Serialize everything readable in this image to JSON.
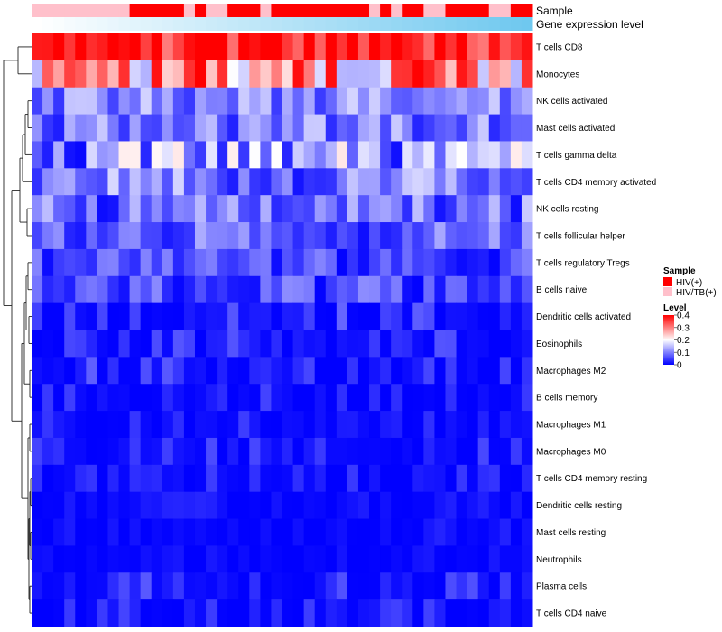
{
  "chart_data": {
    "type": "heatmap",
    "rows": [
      "T cells CD8",
      "Monocytes",
      "NK cells activated",
      "Mast cells activated",
      "T cells gamma delta",
      "T cells CD4 memory activated",
      "NK cells resting",
      "T cells follicular helper",
      "T cells regulatory  Tregs",
      "B cells naive",
      "Dendritic cells activated",
      "Eosinophils",
      "Macrophages M2",
      "B cells memory",
      "Macrophages M1",
      "Macrophages M0",
      "T cells CD4 memory resting",
      "Dendritic cells resting",
      "Mast cells resting",
      "Neutrophils",
      "Plasma cells",
      "T cells CD4 naive"
    ],
    "n_samples": 46,
    "annotation_tracks": [
      {
        "name": "Sample"
      },
      {
        "name": "Gene expression level"
      }
    ],
    "sample_groups": [
      "HIV/TB(+)",
      "HIV/TB(+)",
      "HIV/TB(+)",
      "HIV/TB(+)",
      "HIV/TB(+)",
      "HIV/TB(+)",
      "HIV/TB(+)",
      "HIV/TB(+)",
      "HIV/TB(+)",
      "HIV(+)",
      "HIV(+)",
      "HIV(+)",
      "HIV(+)",
      "HIV(+)",
      "HIV/TB(+)",
      "HIV(+)",
      "HIV/TB(+)",
      "HIV/TB(+)",
      "HIV(+)",
      "HIV(+)",
      "HIV(+)",
      "HIV/TB(+)",
      "HIV(+)",
      "HIV(+)",
      "HIV(+)",
      "HIV(+)",
      "HIV(+)",
      "HIV(+)",
      "HIV(+)",
      "HIV(+)",
      "HIV(+)",
      "HIV/TB(+)",
      "HIV(+)",
      "HIV/TB(+)",
      "HIV(+)",
      "HIV(+)",
      "HIV/TB(+)",
      "HIV/TB(+)",
      "HIV(+)",
      "HIV(+)",
      "HIV(+)",
      "HIV(+)",
      "HIV/TB(+)",
      "HIV/TB(+)",
      "HIV(+)",
      "HIV(+)"
    ],
    "expression_track": {
      "from": 0.0,
      "to": 1.0
    },
    "row_ranges": [
      [
        0.3,
        0.45
      ],
      [
        0.13,
        0.42
      ],
      [
        0.03,
        0.17
      ],
      [
        0.02,
        0.16
      ],
      [
        0.0,
        0.22
      ],
      [
        0.01,
        0.17
      ],
      [
        0.0,
        0.16
      ],
      [
        0.01,
        0.14
      ],
      [
        0.0,
        0.11
      ],
      [
        0.0,
        0.11
      ],
      [
        0.0,
        0.08
      ],
      [
        0.0,
        0.07
      ],
      [
        0.0,
        0.08
      ],
      [
        0.0,
        0.07
      ],
      [
        0.0,
        0.06
      ],
      [
        0.0,
        0.06
      ],
      [
        0.0,
        0.05
      ],
      [
        0.0,
        0.03
      ],
      [
        0.0,
        0.03
      ],
      [
        0.0,
        0.02
      ],
      [
        0.0,
        0.08
      ],
      [
        0.0,
        0.06
      ]
    ],
    "seed": 20240607,
    "colorscale": {
      "min": 0,
      "mid": 0.2,
      "max": 0.4,
      "low": "#0000FF",
      "mid_color": "#FFFFFF",
      "high": "#FF0000"
    },
    "legend": {
      "sample_title": "Sample",
      "sample_entries": [
        {
          "label": "HIV(+)",
          "color": "#FF0000"
        },
        {
          "label": "HIV/TB(+)",
          "color": "#FFC0CB"
        }
      ],
      "level_title": "Level",
      "level_ticks": [
        0.4,
        0.3,
        0.2,
        0.1,
        0
      ]
    },
    "track_colors": {
      "expression_low": "#FFFFFF",
      "expression_high": "#6FC8EF"
    },
    "dendrogram": {
      "side": "left"
    }
  }
}
